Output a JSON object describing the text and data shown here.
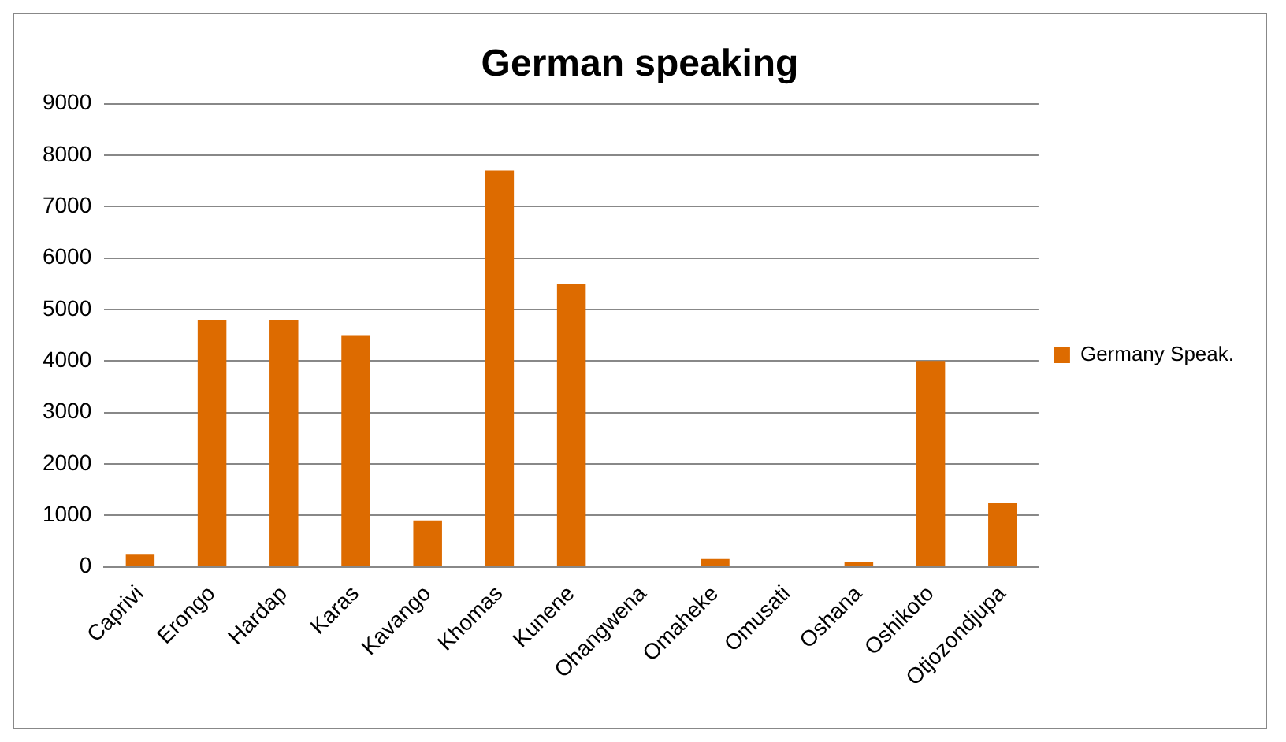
{
  "chart_data": {
    "type": "bar",
    "title": "German speaking",
    "categories": [
      "Caprivi",
      "Erongo",
      "Hardap",
      "Karas",
      "Kavango",
      "Khomas",
      "Kunene",
      "Ohangwena",
      "Omaheke",
      "Omusati",
      "Oshana",
      "Oshikoto",
      "Otjozondjupa"
    ],
    "series": [
      {
        "name": "Germany Speak.",
        "color": "#dd6b00",
        "values": [
          250,
          4800,
          4800,
          4500,
          900,
          7700,
          5500,
          0,
          150,
          0,
          100,
          4000,
          1250
        ]
      }
    ],
    "ylim": [
      0,
      9000
    ],
    "yticks": [
      0,
      1000,
      2000,
      3000,
      4000,
      5000,
      6000,
      7000,
      8000,
      9000
    ],
    "grid": "y",
    "legend": "right"
  }
}
